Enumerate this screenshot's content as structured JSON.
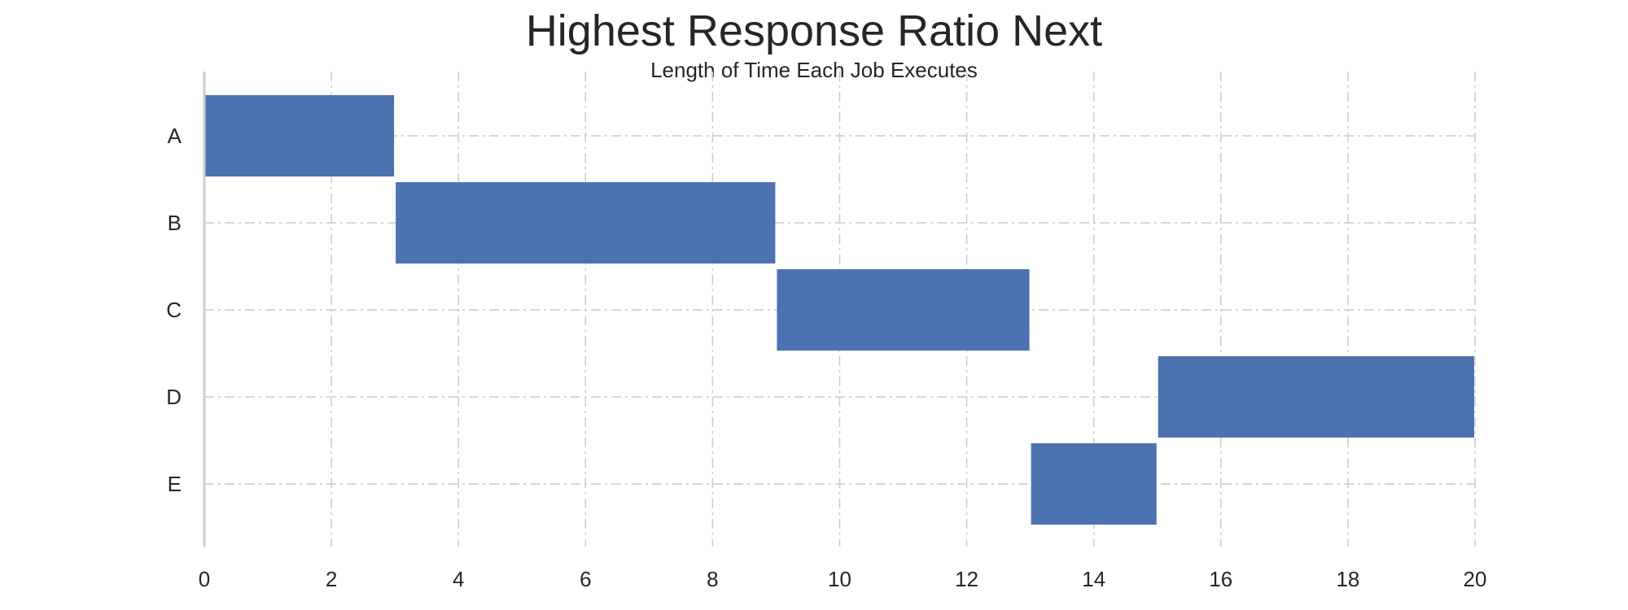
{
  "chart_data": {
    "type": "bar",
    "orientation": "horizontal-gantt",
    "title": "Highest Response Ratio Next",
    "subtitle": "Length of Time Each Job Executes",
    "xlabel": "",
    "ylabel": "",
    "categories": [
      "A",
      "B",
      "C",
      "D",
      "E"
    ],
    "series": [
      {
        "values": [
          {
            "job": "A",
            "start": 0,
            "end": 3
          },
          {
            "job": "B",
            "start": 3,
            "end": 9
          },
          {
            "job": "C",
            "start": 9,
            "end": 13
          },
          {
            "job": "D",
            "start": 15,
            "end": 20
          },
          {
            "job": "E",
            "start": 13,
            "end": 15
          }
        ]
      }
    ],
    "xlim": [
      0,
      20
    ],
    "xticks": [
      0,
      2,
      4,
      6,
      8,
      10,
      12,
      14,
      16,
      18,
      20
    ],
    "grid": true,
    "legend": "none",
    "bar_color": "#4c72b0",
    "grid_color": "#cccccc",
    "axis_color": "#cccccc"
  }
}
